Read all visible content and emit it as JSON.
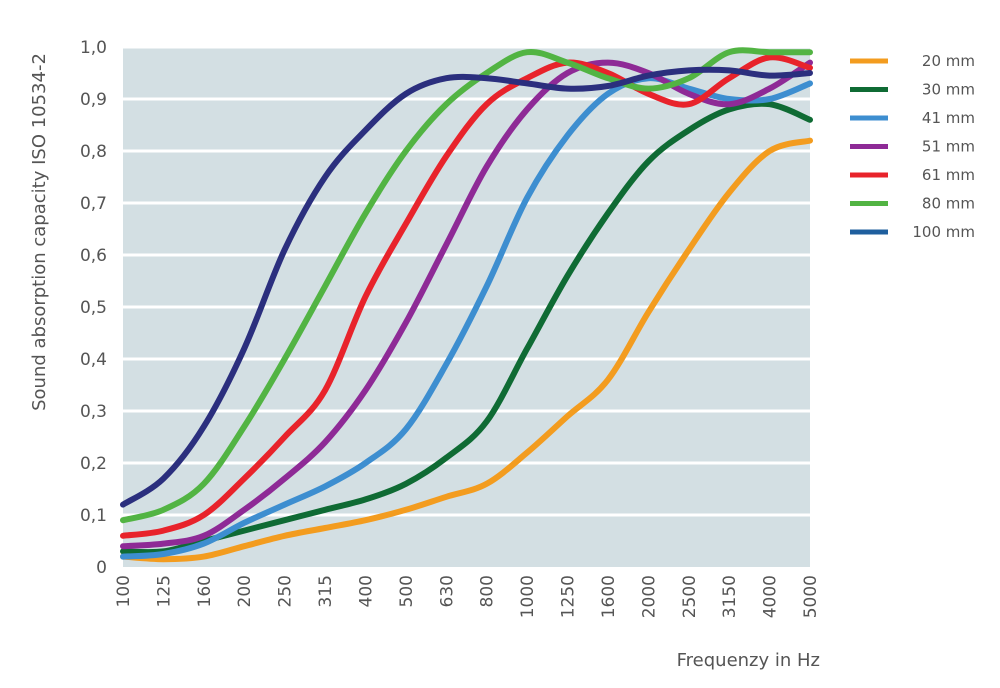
{
  "chart_data": {
    "type": "line",
    "title": "",
    "xlabel": "Frequenzy in Hz",
    "ylabel": "Sound absorption capacity ISO 10534-2",
    "categories": [
      "100",
      "125",
      "160",
      "200",
      "250",
      "315",
      "400",
      "500",
      "630",
      "800",
      "1000",
      "1250",
      "1600",
      "2000",
      "2500",
      "3150",
      "4000",
      "5000"
    ],
    "ylim": [
      0,
      1
    ],
    "yticks": [
      0,
      0.1,
      0.2,
      0.3,
      0.4,
      0.5,
      0.6,
      0.7,
      0.8,
      0.9,
      1.0
    ],
    "ytick_labels": [
      "0",
      "0,1",
      "0,2",
      "0,3",
      "0,4",
      "0,5",
      "0,6",
      "0,7",
      "0,8",
      "0,9",
      "1,0"
    ],
    "grid": true,
    "legend_position": "right",
    "series": [
      {
        "name": "20 mm",
        "color": "#f39c1f",
        "values": [
          0.02,
          0.015,
          0.02,
          0.04,
          0.06,
          0.075,
          0.09,
          0.11,
          0.135,
          0.16,
          0.22,
          0.29,
          0.36,
          0.49,
          0.61,
          0.72,
          0.8,
          0.82
        ]
      },
      {
        "name": "30 mm",
        "color": "#0f6b34",
        "values": [
          0.03,
          0.03,
          0.05,
          0.07,
          0.09,
          0.11,
          0.13,
          0.16,
          0.21,
          0.28,
          0.42,
          0.56,
          0.68,
          0.78,
          0.84,
          0.88,
          0.89,
          0.86
        ]
      },
      {
        "name": "41 mm",
        "color": "#3d8ed0",
        "values": [
          0.02,
          0.025,
          0.045,
          0.085,
          0.12,
          0.155,
          0.2,
          0.265,
          0.39,
          0.54,
          0.71,
          0.83,
          0.91,
          0.94,
          0.92,
          0.9,
          0.9,
          0.93
        ]
      },
      {
        "name": "51 mm",
        "color": "#8e2a96",
        "values": [
          0.04,
          0.045,
          0.06,
          0.11,
          0.17,
          0.24,
          0.34,
          0.47,
          0.62,
          0.77,
          0.88,
          0.95,
          0.97,
          0.95,
          0.91,
          0.89,
          0.92,
          0.97
        ]
      },
      {
        "name": "61 mm",
        "color": "#e8232b",
        "values": [
          0.06,
          0.07,
          0.1,
          0.17,
          0.25,
          0.34,
          0.52,
          0.66,
          0.79,
          0.89,
          0.94,
          0.97,
          0.95,
          0.91,
          0.89,
          0.94,
          0.98,
          0.96
        ]
      },
      {
        "name": "80 mm",
        "color": "#52b443",
        "values": [
          0.09,
          0.11,
          0.16,
          0.27,
          0.4,
          0.54,
          0.68,
          0.8,
          0.89,
          0.95,
          0.99,
          0.97,
          0.94,
          0.92,
          0.94,
          0.99,
          0.99,
          0.99
        ]
      },
      {
        "name": "100 mm",
        "color": "#2b2f7e",
        "values": [
          0.12,
          0.17,
          0.27,
          0.42,
          0.61,
          0.75,
          0.84,
          0.91,
          0.94,
          0.94,
          0.93,
          0.92,
          0.925,
          0.945,
          0.955,
          0.955,
          0.945,
          0.95
        ]
      }
    ]
  },
  "legend_swatch_colors": [
    "#f39c1f",
    "#0f6b34",
    "#3d8ed0",
    "#8e2a96",
    "#e8232b",
    "#52b443",
    "#1f5f9e"
  ],
  "plot_background": "#d3dfe3",
  "grid_color": "#ffffff"
}
